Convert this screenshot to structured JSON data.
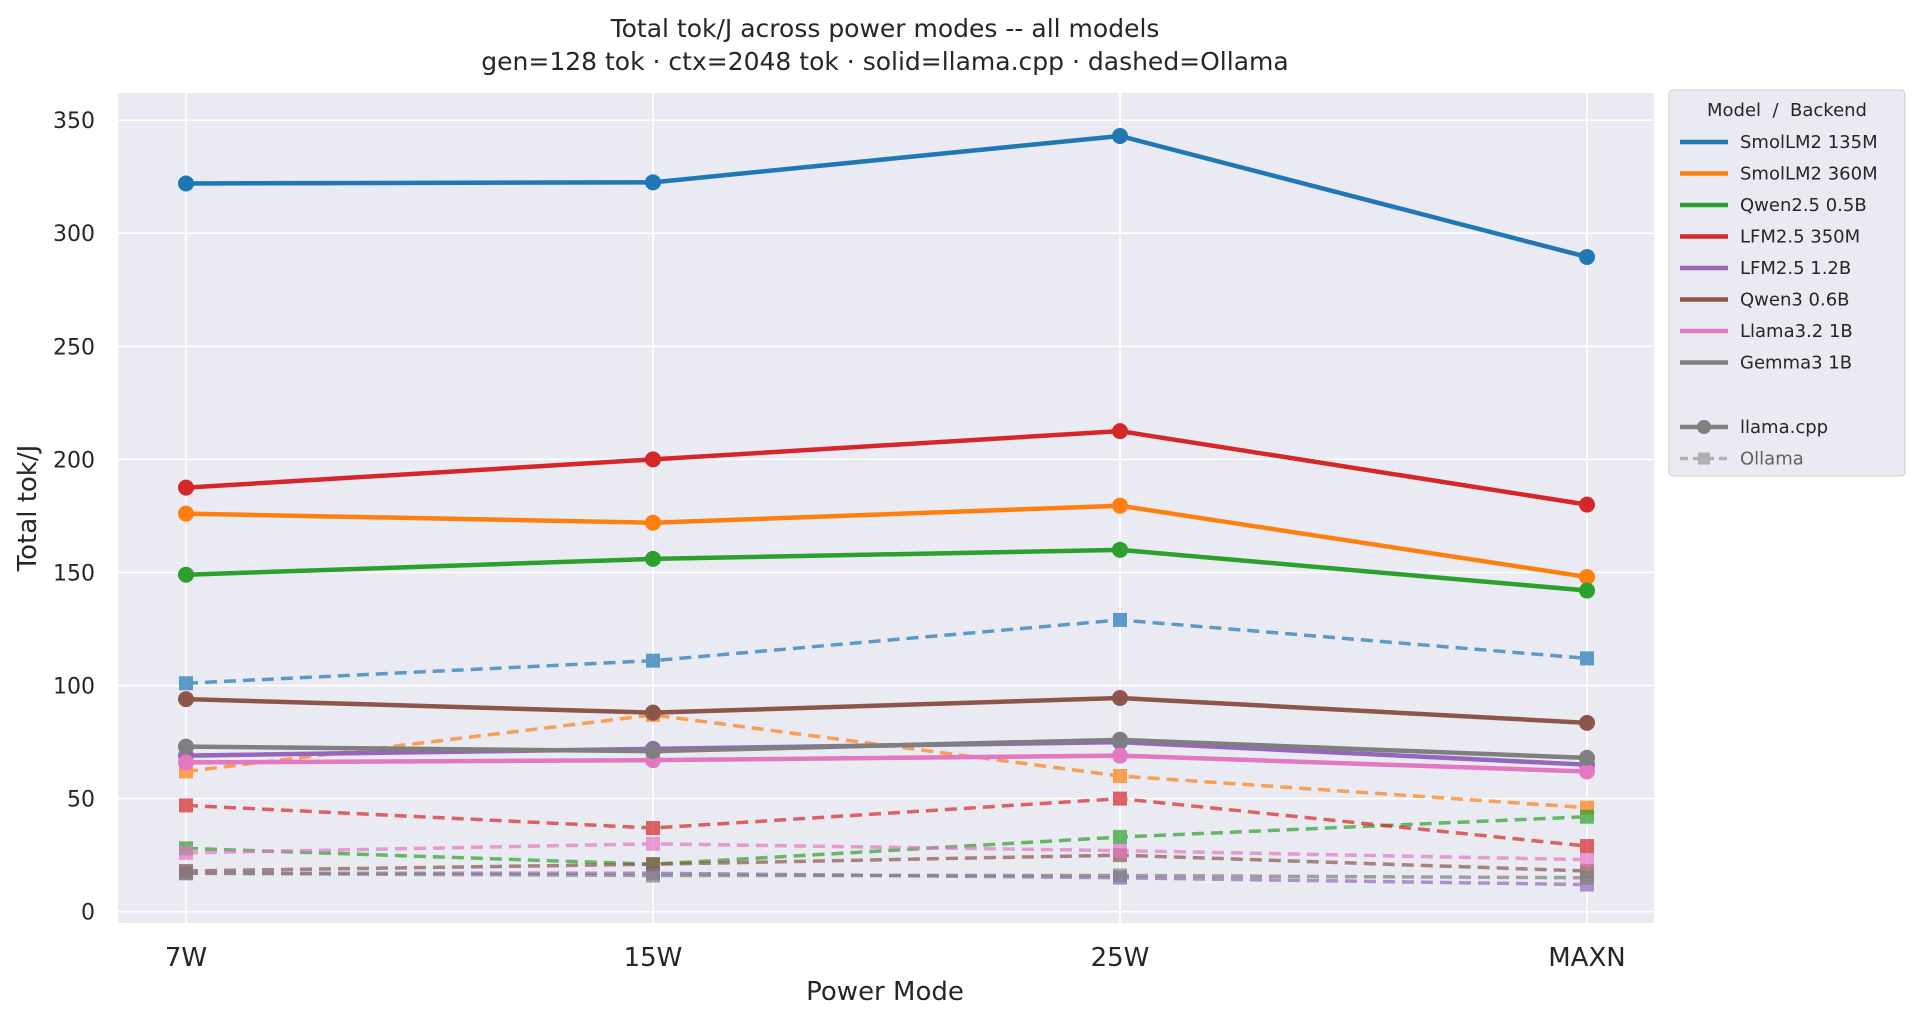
{
  "chart_data": {
    "type": "line",
    "title": "Total tok/J across power modes -- all models",
    "subtitle": "gen=128 tok · ctx=2048 tok · solid=llama.cpp · dashed=Ollama",
    "xlabel": "Power Mode",
    "ylabel": "Total tok/J",
    "categories": [
      "7W",
      "15W",
      "25W",
      "MAXN"
    ],
    "ylim": [
      -5,
      362
    ],
    "yticks": [
      0,
      50,
      100,
      150,
      200,
      250,
      300,
      350
    ],
    "grid": true,
    "legend_position": "outside-right",
    "legend_title": "Model  /  Backend",
    "models": [
      {
        "name": "SmolLM2 135M",
        "color": "#1f77b4"
      },
      {
        "name": "SmolLM2 360M",
        "color": "#ff7f0e"
      },
      {
        "name": "Qwen2.5 0.5B",
        "color": "#2ca02c"
      },
      {
        "name": "LFM2.5 350M",
        "color": "#d62728"
      },
      {
        "name": "LFM2.5 1.2B",
        "color": "#9467bd"
      },
      {
        "name": "Qwen3 0.6B",
        "color": "#8c564b"
      },
      {
        "name": "Llama3.2 1B",
        "color": "#e377c2"
      },
      {
        "name": "Gemma3 1B",
        "color": "#7f7f7f"
      }
    ],
    "backends": [
      {
        "name": "llama.cpp",
        "style": "solid",
        "marker": "circle"
      },
      {
        "name": "Ollama",
        "style": "dashed",
        "marker": "square"
      }
    ],
    "series": [
      {
        "model": "SmolLM2 135M",
        "backend": "Ollama",
        "values": [
          101,
          111,
          129,
          112
        ]
      },
      {
        "model": "SmolLM2 360M",
        "backend": "Ollama",
        "values": [
          62,
          87,
          60,
          46
        ]
      },
      {
        "model": "Qwen2.5 0.5B",
        "backend": "Ollama",
        "values": [
          28,
          21,
          33,
          42
        ]
      },
      {
        "model": "LFM2.5 350M",
        "backend": "Ollama",
        "values": [
          47,
          37,
          50,
          29
        ]
      },
      {
        "model": "LFM2.5 1.2B",
        "backend": "Ollama",
        "values": [
          17,
          17,
          15,
          12
        ]
      },
      {
        "model": "Qwen3 0.6B",
        "backend": "Ollama",
        "values": [
          18,
          21,
          25,
          18
        ]
      },
      {
        "model": "Llama3.2 1B",
        "backend": "Ollama",
        "values": [
          26,
          30,
          27,
          23
        ]
      },
      {
        "model": "Gemma3 1B",
        "backend": "Ollama",
        "values": [
          17,
          16,
          16,
          15
        ]
      },
      {
        "model": "SmolLM2 135M",
        "backend": "llama.cpp",
        "values": [
          322,
          322.5,
          343,
          289.5
        ]
      },
      {
        "model": "SmolLM2 360M",
        "backend": "llama.cpp",
        "values": [
          176,
          172,
          179.5,
          148
        ]
      },
      {
        "model": "Qwen2.5 0.5B",
        "backend": "llama.cpp",
        "values": [
          149,
          156,
          160,
          142
        ]
      },
      {
        "model": "LFM2.5 350M",
        "backend": "llama.cpp",
        "values": [
          187.5,
          200,
          212.5,
          180
        ]
      },
      {
        "model": "LFM2.5 1.2B",
        "backend": "llama.cpp",
        "values": [
          69,
          72,
          75,
          65
        ]
      },
      {
        "model": "Qwen3 0.6B",
        "backend": "llama.cpp",
        "values": [
          94,
          88,
          94.5,
          83.5
        ]
      },
      {
        "model": "Llama3.2 1B",
        "backend": "llama.cpp",
        "values": [
          66,
          67,
          69,
          62
        ]
      },
      {
        "model": "Gemma3 1B",
        "backend": "llama.cpp",
        "values": [
          73,
          71,
          76,
          68
        ]
      }
    ]
  }
}
